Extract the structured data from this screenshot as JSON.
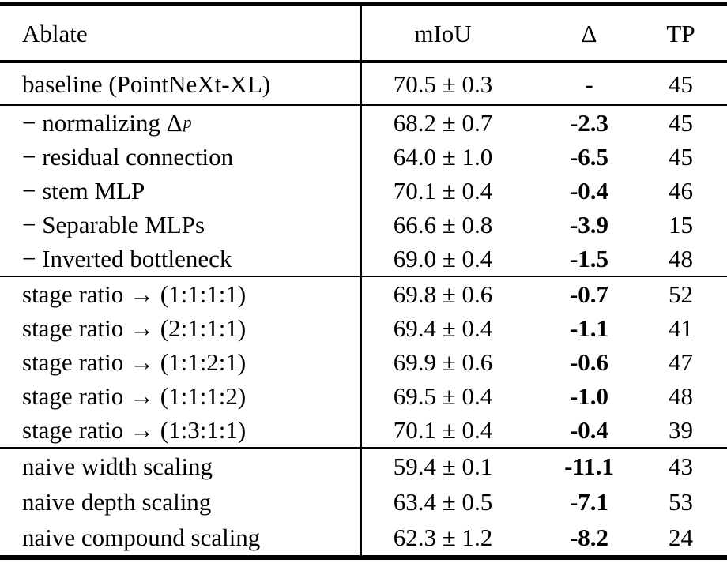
{
  "table": {
    "colors": {
      "text": "#000000",
      "background": "#ffffff",
      "rule": "#000000"
    },
    "header": {
      "ablate": "Ablate",
      "miou": "mIoU",
      "delta": "Δ",
      "tp": "TP"
    },
    "baseline": {
      "label": "baseline (PointNeXt-XL)",
      "miou": "70.5 ± 0.3",
      "delta": "-",
      "tp": "45"
    },
    "sections": [
      {
        "rows": [
          {
            "label": "− normalizing Δ",
            "label_sub": "p",
            "miou": "68.2 ± 0.7",
            "delta": "-2.3",
            "tp": "45"
          },
          {
            "label": "− residual connection",
            "miou": "64.0 ± 1.0",
            "delta": "-6.5",
            "tp": "45"
          },
          {
            "label": "− stem MLP",
            "miou": "70.1 ± 0.4",
            "delta": "-0.4",
            "tp": "46"
          },
          {
            "label": "− Separable MLPs",
            "miou": "66.6 ± 0.8",
            "delta": "-3.9",
            "tp": "15"
          },
          {
            "label": "− Inverted bottleneck",
            "miou": "69.0 ± 0.4",
            "delta": "-1.5",
            "tp": "48"
          }
        ]
      },
      {
        "rows": [
          {
            "label": "stage ratio → (1:1:1:1)",
            "miou": "69.8 ± 0.6",
            "delta": "-0.7",
            "tp": "52"
          },
          {
            "label": "stage ratio → (2:1:1:1)",
            "miou": "69.4 ± 0.4",
            "delta": "-1.1",
            "tp": "41"
          },
          {
            "label": "stage ratio → (1:1:2:1)",
            "miou": "69.9 ± 0.6",
            "delta": "-0.6",
            "tp": "47"
          },
          {
            "label": "stage ratio → (1:1:1:2)",
            "miou": "69.5 ± 0.4",
            "delta": "-1.0",
            "tp": "48"
          },
          {
            "label": "stage ratio → (1:3:1:1)",
            "miou": "70.1 ± 0.4",
            "delta": "-0.4",
            "tp": "39"
          }
        ]
      },
      {
        "rows": [
          {
            "label": "naive width scaling",
            "miou": "59.4 ± 0.1",
            "delta": "-11.1",
            "tp": "43"
          },
          {
            "label": "naive depth scaling",
            "miou": "63.4 ± 0.5",
            "delta": "-7.1",
            "tp": "53"
          },
          {
            "label": "naive compound scaling",
            "miou": "62.3 ± 1.2",
            "delta": "-8.2",
            "tp": "24"
          }
        ]
      }
    ]
  }
}
